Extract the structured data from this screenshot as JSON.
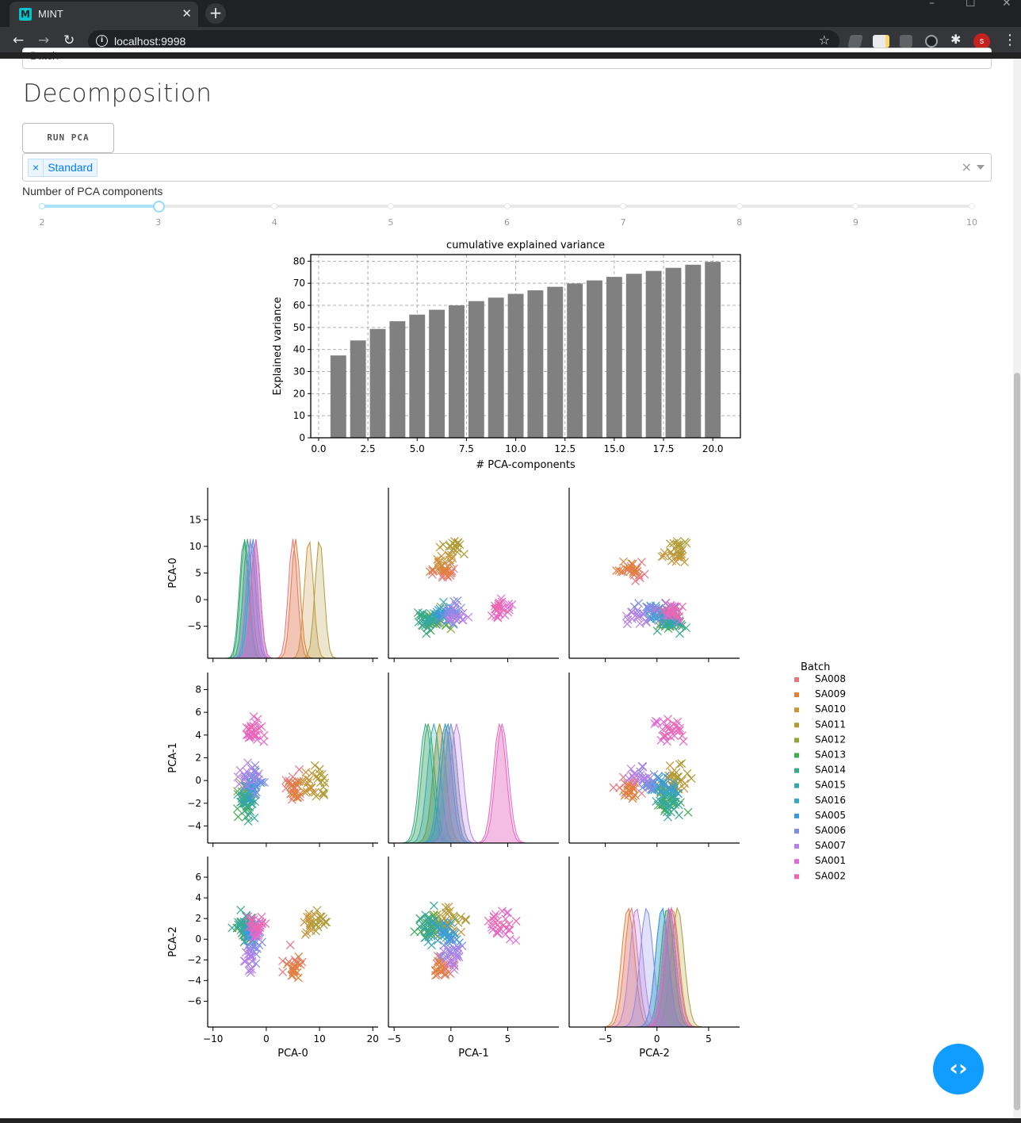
{
  "browser": {
    "tab_title": "MINT",
    "tab_favicon": "M",
    "url": "localhost:9998",
    "new_tab": "+",
    "avatar_initial": "s"
  },
  "page": {
    "previous_field_value": "Batch",
    "heading": "Decomposition",
    "run_button_label": "RUN PCA",
    "scaler_selected": "Standard",
    "slider": {
      "label": "Number of PCA components",
      "marks": [
        "2",
        "3",
        "4",
        "5",
        "6",
        "7",
        "8",
        "9",
        "10"
      ],
      "value": 3,
      "min": 2,
      "max": 10
    }
  },
  "chart_data": [
    {
      "type": "bar",
      "title": "cumulative explained variance",
      "xlabel": "# PCA-components",
      "ylabel": "Explained variance",
      "categories": [
        1,
        2,
        3,
        4,
        5,
        6,
        7,
        8,
        9,
        10,
        11,
        12,
        13,
        14,
        15,
        16,
        17,
        18,
        19,
        20
      ],
      "values": [
        37.3,
        44.1,
        49.3,
        52.8,
        55.8,
        58.0,
        60.0,
        61.9,
        63.5,
        65.2,
        66.8,
        68.4,
        69.9,
        71.3,
        72.9,
        74.3,
        75.6,
        77.0,
        78.4,
        79.7
      ],
      "xlim": [
        -0.4,
        21.4
      ],
      "ylim": [
        0,
        83
      ],
      "xticks": [
        "0.0",
        "2.5",
        "5.0",
        "7.5",
        "10.0",
        "12.5",
        "15.0",
        "17.5",
        "20.0"
      ],
      "yticks": [
        "0",
        "10",
        "20",
        "30",
        "40",
        "50",
        "60",
        "70",
        "80"
      ],
      "grid": true,
      "bar_color": "#808080"
    },
    {
      "type": "scatter",
      "chart_kind": "pairplot",
      "variables": [
        "PCA-0",
        "PCA-1",
        "PCA-2"
      ],
      "legend_title": "Batch",
      "legend_position": "right",
      "marker": "x",
      "diagonal": "kde",
      "axis_ranges": {
        "PCA-0": [
          -11,
          21
        ],
        "PCA-1": [
          -5.5,
          9.5
        ],
        "PCA-2": [
          -8.5,
          8
        ]
      },
      "ticks": {
        "PCA-0": {
          "row": [
            "15",
            "10",
            "5",
            "0",
            "−5"
          ],
          "col": [
            "−10",
            "0",
            "10",
            "20"
          ]
        },
        "PCA-1": {
          "row": [
            "8",
            "6",
            "4",
            "2",
            "0",
            "−2",
            "−4"
          ],
          "col": [
            "−5",
            "0",
            "5"
          ]
        },
        "PCA-2": {
          "row": [
            "6",
            "4",
            "2",
            "0",
            "−2",
            "−4",
            "−6"
          ],
          "col": [
            "−5",
            "0",
            "5"
          ]
        }
      },
      "series": [
        {
          "name": "SA008",
          "color": "#e8767f",
          "centroid": [
            5.0,
            -0.5,
            -2.5
          ]
        },
        {
          "name": "SA009",
          "color": "#e0803b",
          "centroid": [
            5.5,
            -1.0,
            -2.8
          ]
        },
        {
          "name": "SA010",
          "color": "#c8953a",
          "centroid": [
            8.0,
            -0.3,
            1.5
          ]
        },
        {
          "name": "SA011",
          "color": "#b09b36",
          "centroid": [
            10.0,
            0.0,
            2.0
          ]
        },
        {
          "name": "SA012",
          "color": "#8fa838",
          "centroid": [
            -3.5,
            -1.0,
            1.0
          ]
        },
        {
          "name": "SA013",
          "color": "#3fad4d",
          "centroid": [
            -4.0,
            -2.0,
            1.0
          ]
        },
        {
          "name": "SA014",
          "color": "#38a88a",
          "centroid": [
            -4.2,
            -2.2,
            1.2
          ]
        },
        {
          "name": "SA015",
          "color": "#35a8a4",
          "centroid": [
            -3.5,
            -1.5,
            1.2
          ]
        },
        {
          "name": "SA016",
          "color": "#38a7c4",
          "centroid": [
            -2.8,
            -0.5,
            0.5
          ]
        },
        {
          "name": "SA005",
          "color": "#3c9ad9",
          "centroid": [
            -2.5,
            -0.3,
            0.5
          ]
        },
        {
          "name": "SA006",
          "color": "#7f8de6",
          "centroid": [
            -2.0,
            0.0,
            -1.0
          ]
        },
        {
          "name": "SA007",
          "color": "#b67fe6",
          "centroid": [
            -3.0,
            0.5,
            -2.0
          ]
        },
        {
          "name": "SA001",
          "color": "#e06bd8",
          "centroid": [
            -2.0,
            4.5,
            1.2
          ]
        },
        {
          "name": "SA002",
          "color": "#ec67b0",
          "centroid": [
            -2.0,
            4.3,
            1.4
          ]
        }
      ]
    }
  ]
}
